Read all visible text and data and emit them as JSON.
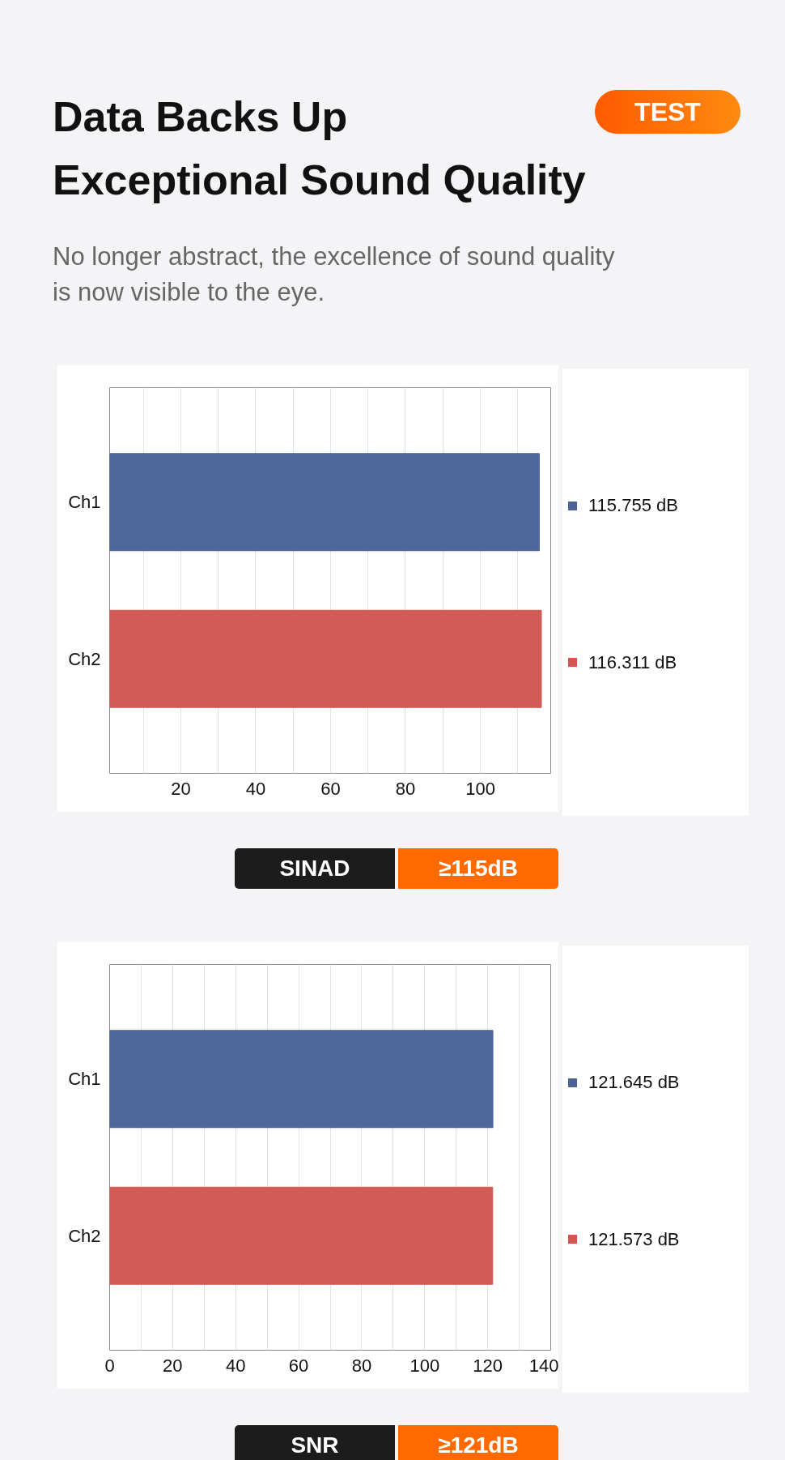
{
  "chart_data": [
    {
      "type": "bar",
      "orientation": "horizontal",
      "title": "Data Backs Up Exceptional Sound Quality",
      "subtitle": "No longer abstract, the excellence of sound quality is now visible to the eye.",
      "categories": [
        "Ch1",
        "Ch2"
      ],
      "values": [
        115.755,
        116.311
      ],
      "colors": [
        "#4a6298",
        "#d25652"
      ],
      "value_labels": [
        "115.755 dB",
        "116.311 dB"
      ],
      "xlim": [
        1,
        118.8
      ],
      "xticks": [
        {
          "value": 10,
          "label": null
        },
        20,
        {
          "value": 30,
          "label": null
        },
        40,
        {
          "value": 50,
          "label": null
        },
        60,
        {
          "value": 70,
          "label": null
        },
        80,
        {
          "value": 90,
          "label": null
        },
        100,
        {
          "value": 110,
          "label": null
        }
      ],
      "grid": "x",
      "annotations": [
        "TEST",
        "SINAD",
        "≥115dB"
      ]
    },
    {
      "type": "bar",
      "orientation": "horizontal",
      "categories": [
        "Ch1",
        "Ch2"
      ],
      "values": [
        121.645,
        121.573
      ],
      "colors": [
        "#4a6298",
        "#d25652"
      ],
      "value_labels": [
        "121.645 dB",
        "121.573 dB"
      ],
      "xlim": [
        0,
        140
      ],
      "xticks": [
        0,
        {
          "value": 10,
          "label": null
        },
        20,
        {
          "value": 30,
          "label": null
        },
        40,
        {
          "value": 50,
          "label": null
        },
        60,
        {
          "value": 70,
          "label": null
        },
        80,
        {
          "value": 90,
          "label": null
        },
        100,
        {
          "value": 110,
          "label": null
        },
        120,
        {
          "value": 130,
          "label": null
        },
        140
      ],
      "grid": "x",
      "annotations": [
        "SNR",
        "≥121dB"
      ]
    }
  ]
}
